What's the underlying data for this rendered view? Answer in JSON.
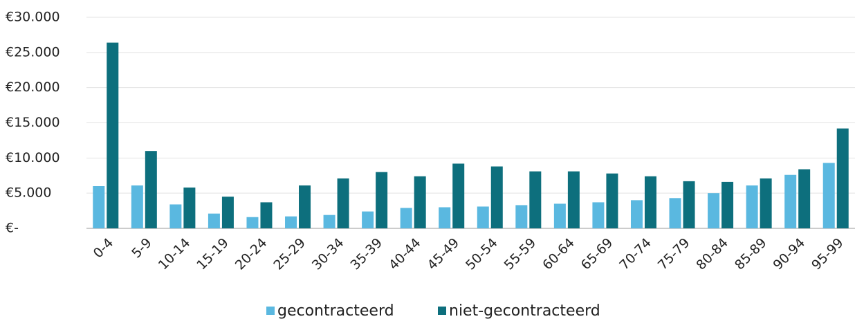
{
  "chart_data": {
    "type": "bar",
    "categories": [
      "0-4",
      "5-9",
      "10-14",
      "15-19",
      "20-24",
      "25-29",
      "30-34",
      "35-39",
      "40-44",
      "45-49",
      "50-54",
      "55-59",
      "60-64",
      "65-69",
      "70-74",
      "75-79",
      "80-84",
      "85-89",
      "90-94",
      "95-99"
    ],
    "series": [
      {
        "name": "gecontracteerd",
        "color": "#5ab8e0",
        "values": [
          6000,
          6100,
          3400,
          2100,
          1600,
          1700,
          1900,
          2400,
          2900,
          3000,
          3100,
          3300,
          3500,
          3700,
          4000,
          4300,
          5000,
          6100,
          7600,
          9300
        ]
      },
      {
        "name": "niet-gecontracteerd",
        "color": "#0d6f7d",
        "values": [
          26400,
          11000,
          5800,
          4500,
          3700,
          6100,
          7100,
          8000,
          7400,
          9200,
          8800,
          8100,
          8100,
          7800,
          7400,
          6700,
          6600,
          7100,
          8400,
          14200
        ]
      }
    ],
    "ylim": [
      0,
      30000
    ],
    "yticks": [
      {
        "value": 0,
        "label": "€-"
      },
      {
        "value": 5000,
        "label": "€5.000"
      },
      {
        "value": 10000,
        "label": "€10.000"
      },
      {
        "value": 15000,
        "label": "€15.000"
      },
      {
        "value": 20000,
        "label": "€20.000"
      },
      {
        "value": 25000,
        "label": "€25.000"
      },
      {
        "value": 30000,
        "label": "€30.000"
      }
    ],
    "grid": true,
    "legend": "bottom"
  }
}
